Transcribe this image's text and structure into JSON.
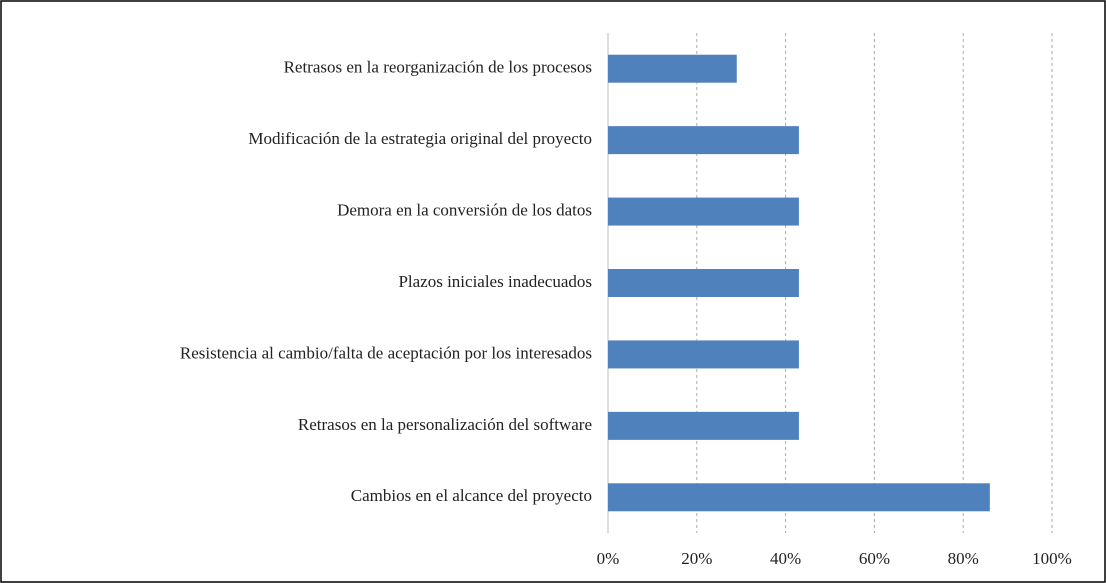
{
  "chart_data": {
    "type": "bar",
    "orientation": "horizontal",
    "categories": [
      "Retrasos en la reorganización de los procesos",
      "Modificación de la estrategia original del proyecto",
      "Demora en la conversión de los datos",
      "Plazos iniciales inadecuados",
      "Resistencia al cambio/falta de aceptación por los interesados",
      "Retrasos en la personalización del software",
      "Cambios en el alcance del proyecto"
    ],
    "values": [
      29,
      43,
      43,
      43,
      43,
      43,
      86
    ],
    "color": "#4f81bd",
    "xlim": [
      0,
      100
    ],
    "xticks": [
      {
        "value": 0,
        "label": "0%"
      },
      {
        "value": 20,
        "label": "20%"
      },
      {
        "value": 40,
        "label": "40%"
      },
      {
        "value": 60,
        "label": "60%"
      },
      {
        "value": 80,
        "label": "80%"
      },
      {
        "value": 100,
        "label": "100%"
      }
    ],
    "grid": true
  }
}
